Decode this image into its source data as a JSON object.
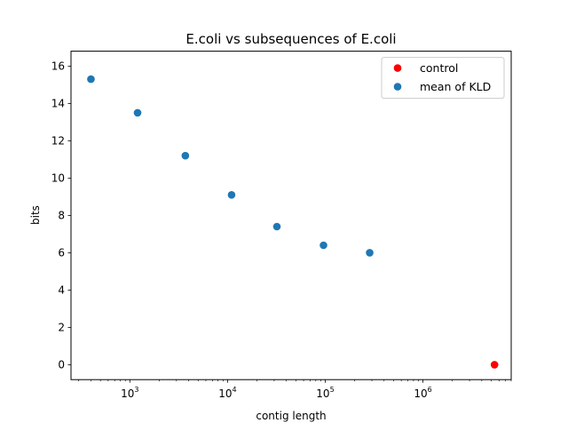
{
  "chart_data": {
    "type": "scatter",
    "title": "E.coli vs subsequences of E.coli",
    "xlabel": "contig length",
    "ylabel": "bits",
    "xscale": "log",
    "xlim": [
      250,
      8000000
    ],
    "ylim": [
      -0.8,
      16.8
    ],
    "grid": false,
    "legend_position": "top-right",
    "x_ticks": [
      {
        "value": 1000,
        "base": "10",
        "exp": "3"
      },
      {
        "value": 10000,
        "base": "10",
        "exp": "4"
      },
      {
        "value": 100000,
        "base": "10",
        "exp": "5"
      },
      {
        "value": 1000000,
        "base": "10",
        "exp": "6"
      }
    ],
    "y_ticks": [
      {
        "value": 0,
        "label": "0"
      },
      {
        "value": 2,
        "label": "2"
      },
      {
        "value": 4,
        "label": "4"
      },
      {
        "value": 6,
        "label": "6"
      },
      {
        "value": 8,
        "label": "8"
      },
      {
        "value": 10,
        "label": "10"
      },
      {
        "value": 12,
        "label": "12"
      },
      {
        "value": 14,
        "label": "14"
      },
      {
        "value": 16,
        "label": "16"
      }
    ],
    "series": [
      {
        "name": "control",
        "color": "#ff0000",
        "points": [
          {
            "x": 5400000,
            "y": 0.0
          }
        ]
      },
      {
        "name": "mean of KLD",
        "color": "#1f77b4",
        "points": [
          {
            "x": 400,
            "y": 15.3
          },
          {
            "x": 1200,
            "y": 13.5
          },
          {
            "x": 3700,
            "y": 11.2
          },
          {
            "x": 11000,
            "y": 9.1
          },
          {
            "x": 32000,
            "y": 7.4
          },
          {
            "x": 96000,
            "y": 6.4
          },
          {
            "x": 285000,
            "y": 6.0
          }
        ]
      }
    ]
  }
}
